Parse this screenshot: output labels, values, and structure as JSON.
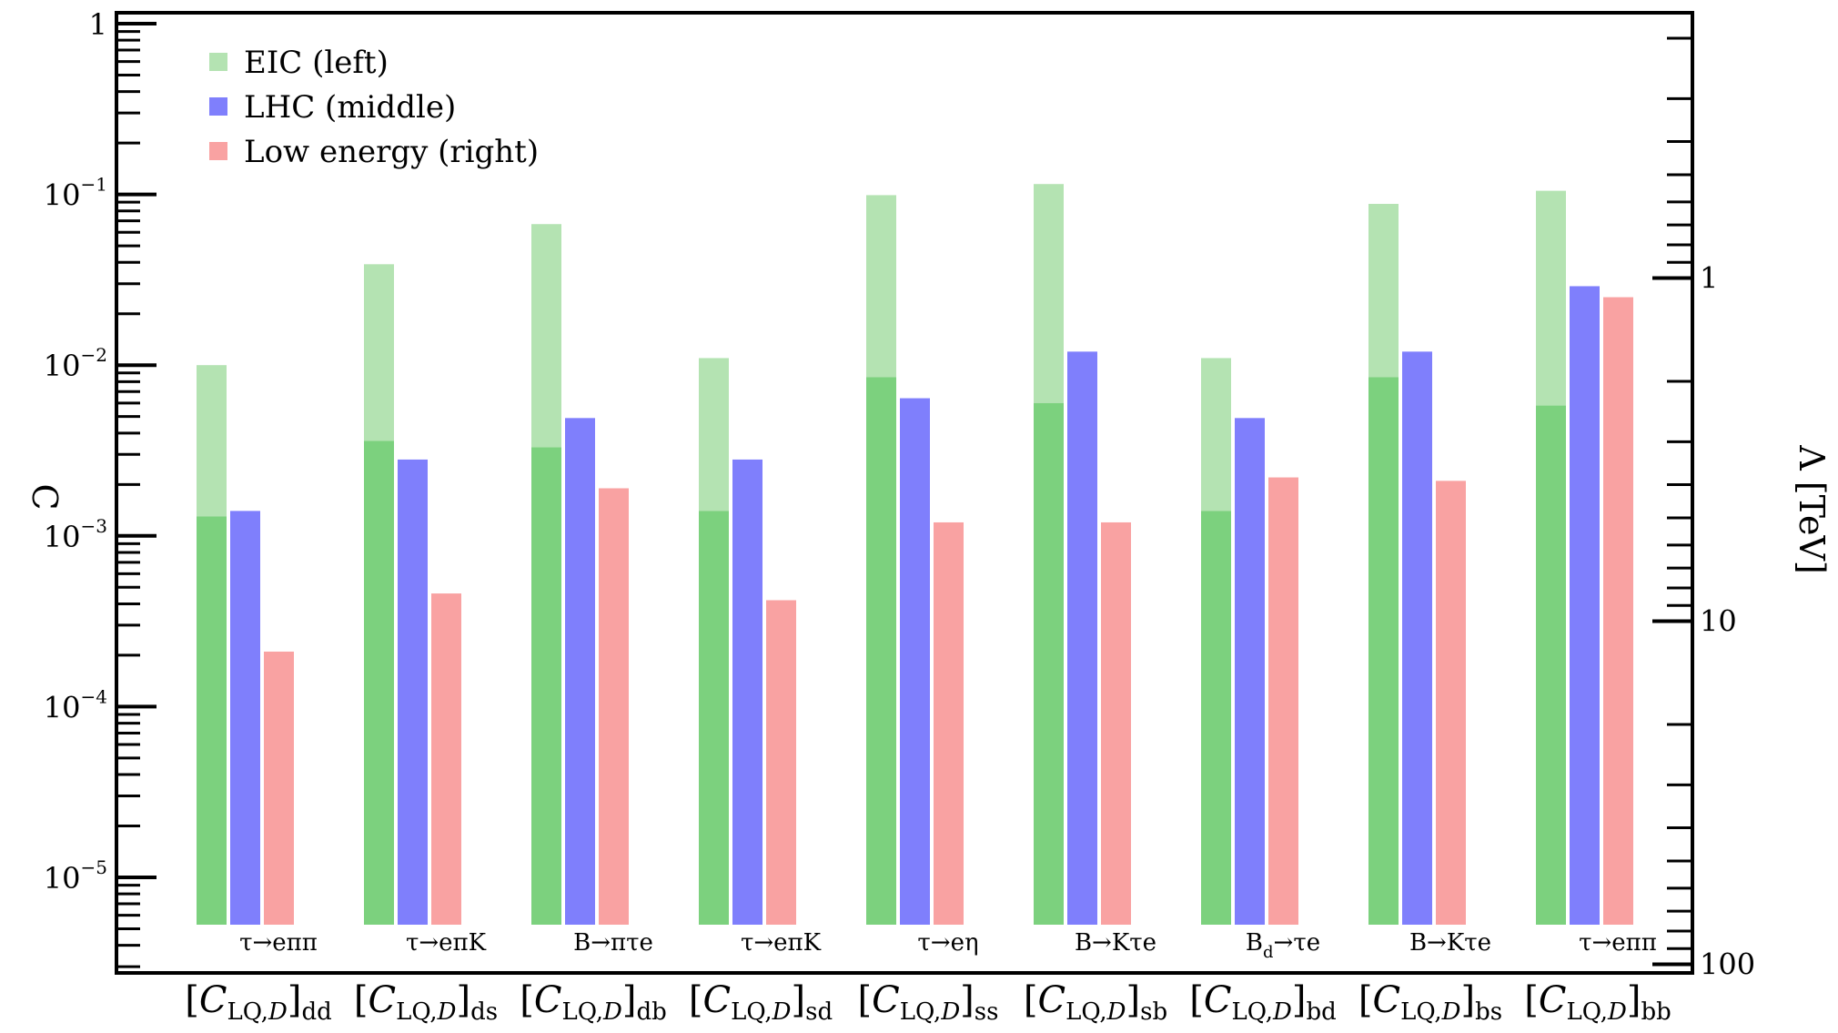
{
  "chart_data": {
    "type": "bar",
    "y_scale": "log",
    "ylim": [
      2e-06,
      1
    ],
    "y_ticks": [
      {
        "value": 1,
        "base": "1",
        "exp": ""
      },
      {
        "value": 0.1,
        "base": "10",
        "exp": "−1"
      },
      {
        "value": 0.01,
        "base": "10",
        "exp": "−2"
      },
      {
        "value": 0.001,
        "base": "10",
        "exp": "−3"
      },
      {
        "value": 0.0001,
        "base": "10",
        "exp": "−4"
      },
      {
        "value": 1e-05,
        "base": "10",
        "exp": "−5"
      }
    ],
    "ylabel": "C",
    "right_axis": {
      "label": "Λ [TeV]",
      "scale": "log",
      "ticks": [
        {
          "value": 1,
          "label": "1"
        },
        {
          "value": 10,
          "label": "10"
        },
        {
          "value": 100,
          "label": "100"
        }
      ]
    },
    "categories": [
      {
        "main": "[C",
        "sub": "LQ,",
        "sub2": "D",
        "close": "]",
        "flavor": "dd",
        "process": "τ→eππ"
      },
      {
        "main": "[C",
        "sub": "LQ,",
        "sub2": "D",
        "close": "]",
        "flavor": "ds",
        "process": "τ→eπK"
      },
      {
        "main": "[C",
        "sub": "LQ,",
        "sub2": "D",
        "close": "]",
        "flavor": "db",
        "process": "B→πτe"
      },
      {
        "main": "[C",
        "sub": "LQ,",
        "sub2": "D",
        "close": "]",
        "flavor": "sd",
        "process": "τ→eπK"
      },
      {
        "main": "[C",
        "sub": "LQ,",
        "sub2": "D",
        "close": "]",
        "flavor": "ss",
        "process": "τ→eη"
      },
      {
        "main": "[C",
        "sub": "LQ,",
        "sub2": "D",
        "close": "]",
        "flavor": "sb",
        "process": "B→Kτe"
      },
      {
        "main": "[C",
        "sub": "LQ,",
        "sub2": "D",
        "close": "]",
        "flavor": "bd",
        "process": "B_d→τe"
      },
      {
        "main": "[C",
        "sub": "LQ,",
        "sub2": "D",
        "close": "]",
        "flavor": "bs",
        "process": "B→Kτe"
      },
      {
        "main": "[C",
        "sub": "LQ,",
        "sub2": "D",
        "close": "]",
        "flavor": "bb",
        "process": "τ→eππ"
      }
    ],
    "series": [
      {
        "name": "EIC (left)",
        "color": "#7cd17e",
        "light_color": "#b4e3b2",
        "values": [
          0.0013,
          0.0036,
          0.0033,
          0.0014,
          0.0085,
          0.006,
          0.0014,
          0.0085,
          0.0058
        ],
        "upper_values": [
          0.01,
          0.039,
          0.067,
          0.011,
          0.099,
          0.115,
          0.011,
          0.088,
          0.105
        ]
      },
      {
        "name": "LHC (middle)",
        "color": "#7f7ffc",
        "values": [
          0.0014,
          0.0028,
          0.0049,
          0.0028,
          0.0064,
          0.012,
          0.0049,
          0.012,
          0.029
        ]
      },
      {
        "name": "Low energy (right)",
        "color": "#f9a2a2",
        "values": [
          0.00021,
          0.00046,
          0.0019,
          0.00042,
          0.0012,
          0.0012,
          0.0022,
          0.0021,
          0.025
        ]
      }
    ],
    "legend_position": "top-left",
    "grid": false
  }
}
